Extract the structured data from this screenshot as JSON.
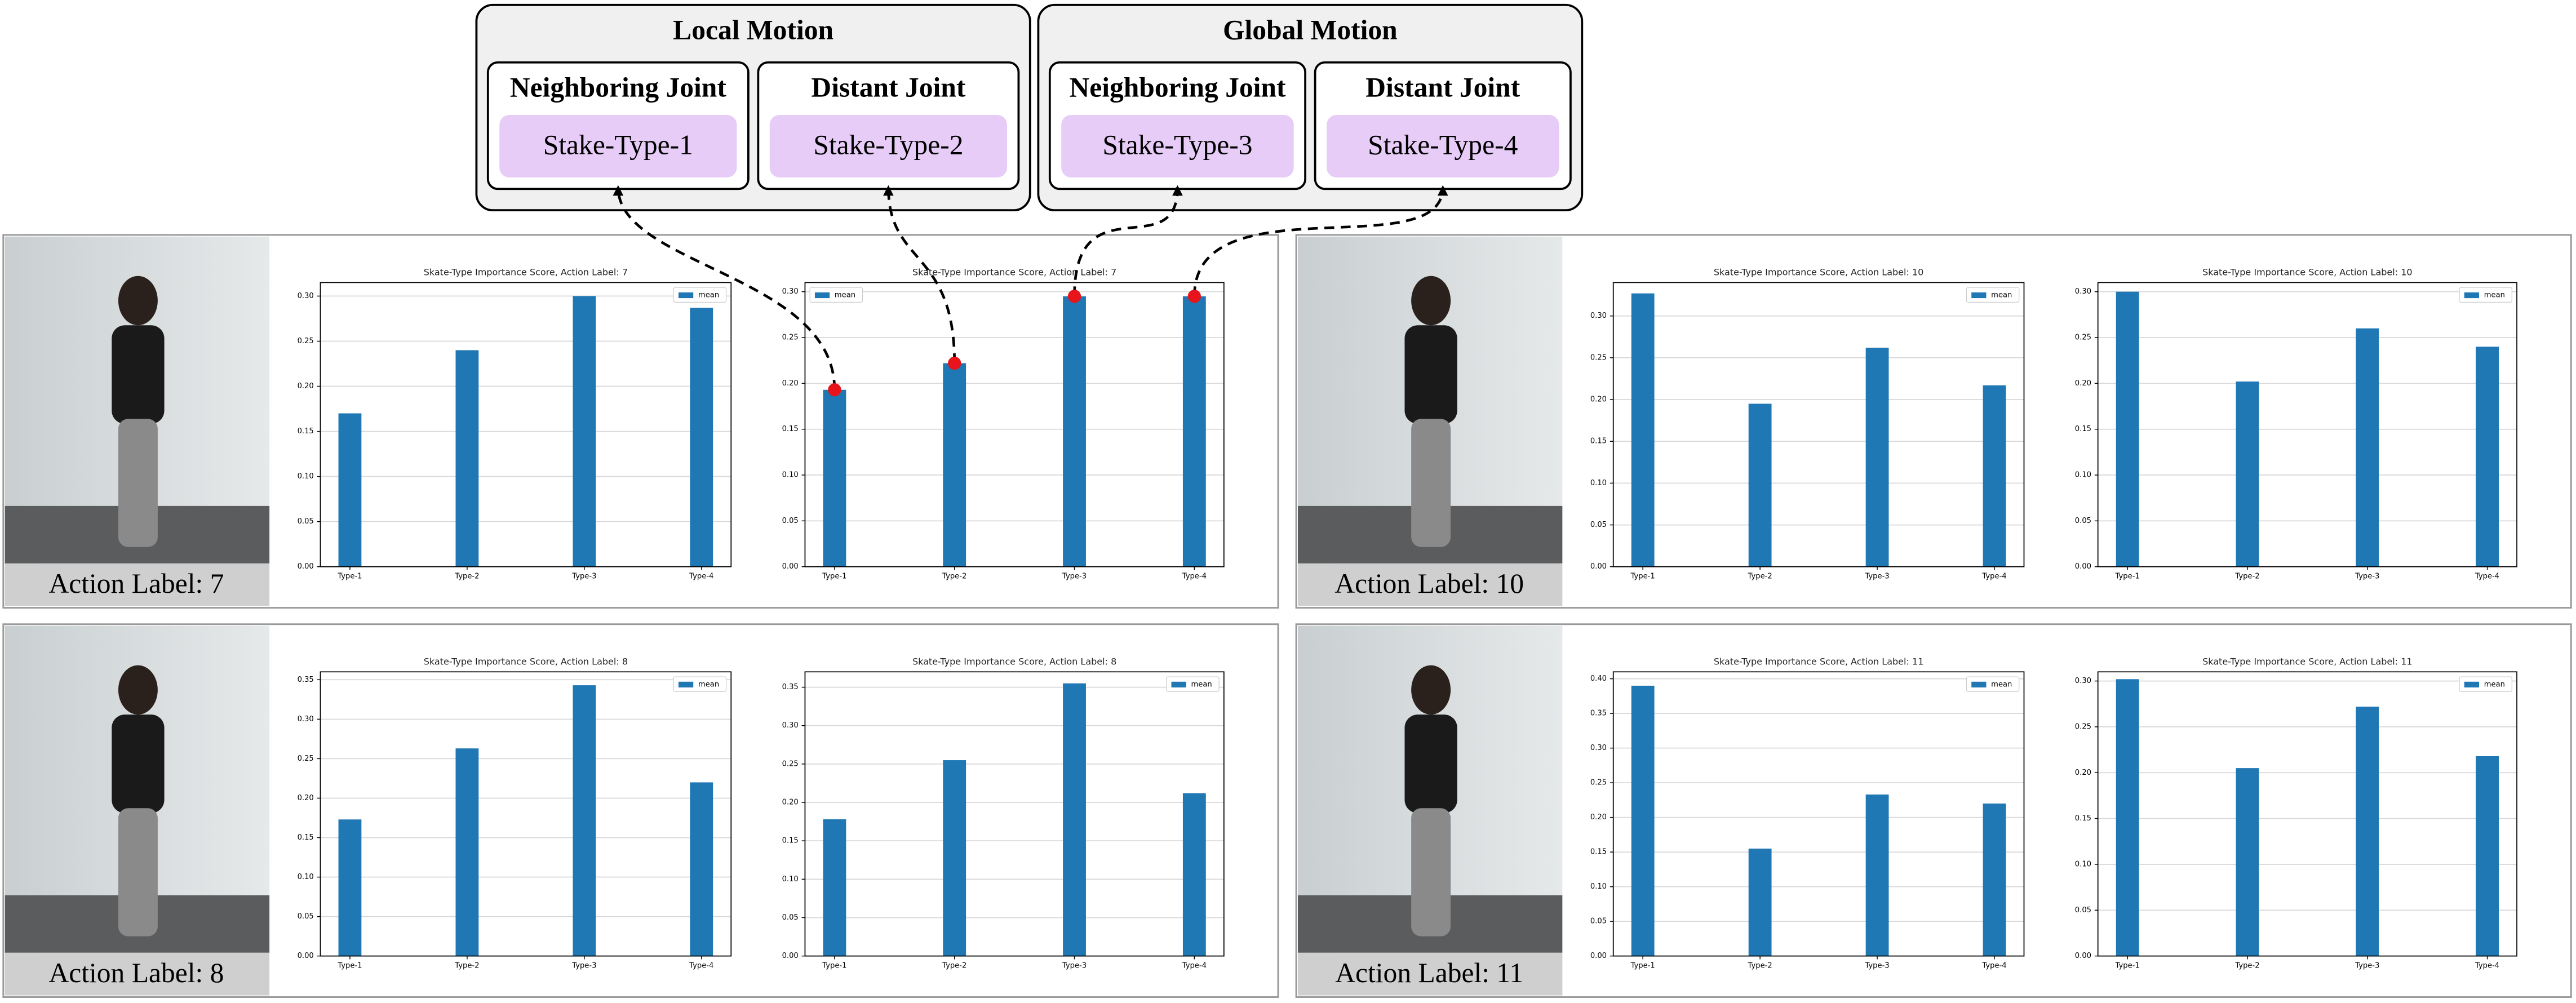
{
  "diagram": {
    "groups": [
      {
        "title": "Local Motion",
        "items": [
          {
            "title": "Neighboring Joint",
            "label": "Stake-Type-1"
          },
          {
            "title": "Distant Joint",
            "label": "Stake-Type-2"
          }
        ]
      },
      {
        "title": "Global Motion",
        "items": [
          {
            "title": "Neighboring Joint",
            "label": "Stake-Type-3"
          },
          {
            "title": "Distant Joint",
            "label": "Stake-Type-4"
          }
        ]
      }
    ]
  },
  "panels": [
    {
      "label": "Action Label: 7"
    },
    {
      "label": "Action Label: 10"
    },
    {
      "label": "Action Label: 8"
    },
    {
      "label": "Action Label: 11"
    }
  ],
  "chart_data": [
    {
      "type": "bar",
      "title": "Skate-Type Importance Score, Action Label: 7",
      "categories": [
        "Type-1",
        "Type-2",
        "Type-3",
        "Type-4"
      ],
      "series": [
        {
          "name": "mean",
          "color": "#1f77b4",
          "values": [
            0.17,
            0.24,
            0.3,
            0.287
          ]
        }
      ],
      "ylim": [
        0,
        0.315
      ],
      "yticks": [
        {
          "value": 0,
          "label": "0.00"
        },
        {
          "value": 0.05,
          "label": "0.05"
        },
        {
          "value": 0.1,
          "label": "0.10"
        },
        {
          "value": 0.15,
          "label": "0.15"
        },
        {
          "value": 0.2,
          "label": "0.20"
        },
        {
          "value": 0.25,
          "label": "0.25"
        },
        {
          "value": 0.3,
          "label": "0.30"
        }
      ],
      "grid": true,
      "legend": "upper right"
    },
    {
      "type": "bar",
      "title": "Skate-Type Importance Score, Action Label: 7",
      "categories": [
        "Type-1",
        "Type-2",
        "Type-3",
        "Type-4"
      ],
      "series": [
        {
          "name": "mean",
          "color": "#1f77b4",
          "values": [
            0.193,
            0.222,
            0.295,
            0.295
          ]
        }
      ],
      "ylim": [
        0,
        0.31
      ],
      "yticks": [
        {
          "value": 0,
          "label": "0.00"
        },
        {
          "value": 0.05,
          "label": "0.05"
        },
        {
          "value": 0.1,
          "label": "0.10"
        },
        {
          "value": 0.15,
          "label": "0.15"
        },
        {
          "value": 0.2,
          "label": "0.20"
        },
        {
          "value": 0.25,
          "label": "0.25"
        },
        {
          "value": 0.3,
          "label": "0.30"
        }
      ],
      "grid": true,
      "legend": "upper left"
    },
    {
      "type": "bar",
      "title": "Skate-Type Importance Score, Action Label: 10",
      "categories": [
        "Type-1",
        "Type-2",
        "Type-3",
        "Type-4"
      ],
      "series": [
        {
          "name": "mean",
          "color": "#1f77b4",
          "values": [
            0.327,
            0.195,
            0.262,
            0.217
          ]
        }
      ],
      "ylim": [
        0,
        0.34
      ],
      "yticks": [
        {
          "value": 0,
          "label": "0.00"
        },
        {
          "value": 0.05,
          "label": "0.05"
        },
        {
          "value": 0.1,
          "label": "0.10"
        },
        {
          "value": 0.15,
          "label": "0.15"
        },
        {
          "value": 0.2,
          "label": "0.20"
        },
        {
          "value": 0.25,
          "label": "0.25"
        },
        {
          "value": 0.3,
          "label": "0.30"
        }
      ],
      "grid": true,
      "legend": "upper right"
    },
    {
      "type": "bar",
      "title": "Skate-Type Importance Score, Action Label: 10",
      "categories": [
        "Type-1",
        "Type-2",
        "Type-3",
        "Type-4"
      ],
      "series": [
        {
          "name": "mean",
          "color": "#1f77b4",
          "values": [
            0.3,
            0.202,
            0.26,
            0.24
          ]
        }
      ],
      "ylim": [
        0,
        0.31
      ],
      "yticks": [
        {
          "value": 0,
          "label": "0.00"
        },
        {
          "value": 0.05,
          "label": "0.05"
        },
        {
          "value": 0.1,
          "label": "0.10"
        },
        {
          "value": 0.15,
          "label": "0.15"
        },
        {
          "value": 0.2,
          "label": "0.20"
        },
        {
          "value": 0.25,
          "label": "0.25"
        },
        {
          "value": 0.3,
          "label": "0.30"
        }
      ],
      "grid": true,
      "legend": "upper right"
    },
    {
      "type": "bar",
      "title": "Skate-Type Importance Score, Action Label: 8",
      "categories": [
        "Type-1",
        "Type-2",
        "Type-3",
        "Type-4"
      ],
      "series": [
        {
          "name": "mean",
          "color": "#1f77b4",
          "values": [
            0.173,
            0.263,
            0.343,
            0.22
          ]
        }
      ],
      "ylim": [
        0,
        0.36
      ],
      "yticks": [
        {
          "value": 0,
          "label": "0.00"
        },
        {
          "value": 0.05,
          "label": "0.05"
        },
        {
          "value": 0.1,
          "label": "0.10"
        },
        {
          "value": 0.15,
          "label": "0.15"
        },
        {
          "value": 0.2,
          "label": "0.20"
        },
        {
          "value": 0.25,
          "label": "0.25"
        },
        {
          "value": 0.3,
          "label": "0.30"
        },
        {
          "value": 0.35,
          "label": "0.35"
        }
      ],
      "grid": true,
      "legend": "upper right"
    },
    {
      "type": "bar",
      "title": "Skate-Type Importance Score, Action Label: 8",
      "categories": [
        "Type-1",
        "Type-2",
        "Type-3",
        "Type-4"
      ],
      "series": [
        {
          "name": "mean",
          "color": "#1f77b4",
          "values": [
            0.178,
            0.255,
            0.355,
            0.212
          ]
        }
      ],
      "ylim": [
        0,
        0.37
      ],
      "yticks": [
        {
          "value": 0,
          "label": "0.00"
        },
        {
          "value": 0.05,
          "label": "0.05"
        },
        {
          "value": 0.1,
          "label": "0.10"
        },
        {
          "value": 0.15,
          "label": "0.15"
        },
        {
          "value": 0.2,
          "label": "0.20"
        },
        {
          "value": 0.25,
          "label": "0.25"
        },
        {
          "value": 0.3,
          "label": "0.30"
        },
        {
          "value": 0.35,
          "label": "0.35"
        }
      ],
      "grid": true,
      "legend": "upper right"
    },
    {
      "type": "bar",
      "title": "Skate-Type Importance Score, Action Label: 11",
      "categories": [
        "Type-1",
        "Type-2",
        "Type-3",
        "Type-4"
      ],
      "series": [
        {
          "name": "mean",
          "color": "#1f77b4",
          "values": [
            0.39,
            0.155,
            0.233,
            0.22
          ]
        }
      ],
      "ylim": [
        0,
        0.41
      ],
      "yticks": [
        {
          "value": 0,
          "label": "0.00"
        },
        {
          "value": 0.05,
          "label": "0.05"
        },
        {
          "value": 0.1,
          "label": "0.10"
        },
        {
          "value": 0.15,
          "label": "0.15"
        },
        {
          "value": 0.2,
          "label": "0.20"
        },
        {
          "value": 0.25,
          "label": "0.25"
        },
        {
          "value": 0.3,
          "label": "0.30"
        },
        {
          "value": 0.35,
          "label": "0.35"
        },
        {
          "value": 0.4,
          "label": "0.40"
        }
      ],
      "grid": true,
      "legend": "upper right"
    },
    {
      "type": "bar",
      "title": "Skate-Type Importance Score, Action Label: 11",
      "categories": [
        "Type-1",
        "Type-2",
        "Type-3",
        "Type-4"
      ],
      "series": [
        {
          "name": "mean",
          "color": "#1f77b4",
          "values": [
            0.302,
            0.205,
            0.272,
            0.218
          ]
        }
      ],
      "ylim": [
        0,
        0.31
      ],
      "yticks": [
        {
          "value": 0,
          "label": "0.00"
        },
        {
          "value": 0.05,
          "label": "0.05"
        },
        {
          "value": 0.1,
          "label": "0.10"
        },
        {
          "value": 0.15,
          "label": "0.15"
        },
        {
          "value": 0.2,
          "label": "0.20"
        },
        {
          "value": 0.25,
          "label": "0.25"
        },
        {
          "value": 0.3,
          "label": "0.30"
        }
      ],
      "grid": true,
      "legend": "upper right"
    }
  ]
}
